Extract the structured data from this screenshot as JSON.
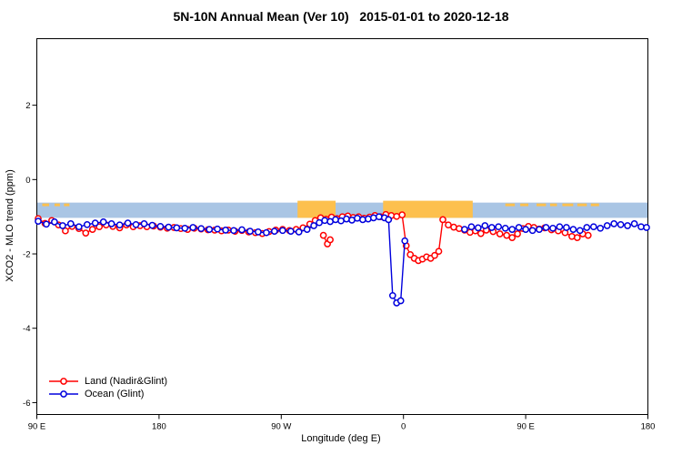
{
  "chart_data": {
    "type": "line",
    "title": "5N-10N Annual Mean (Ver 10)   2015-01-01 to 2020-12-18",
    "xlabel": "Longitude (deg E)",
    "ylabel": "XCO2 - MLO trend (ppm)",
    "x_range": [
      90,
      540
    ],
    "y_range": [
      -6.32,
      3.79
    ],
    "x_ticks": [
      {
        "t": 90,
        "label": "90 E"
      },
      {
        "t": 180,
        "label": "180"
      },
      {
        "t": 270,
        "label": "90 W"
      },
      {
        "t": 360,
        "label": "0"
      },
      {
        "t": 450,
        "label": "90 E"
      },
      {
        "t": 540,
        "label": "180"
      }
    ],
    "y_ticks": [
      {
        "v": 2,
        "label": "2"
      },
      {
        "v": 0,
        "label": "0"
      },
      {
        "v": -2,
        "label": "-2"
      },
      {
        "v": -4,
        "label": "-4"
      },
      {
        "v": -6,
        "label": "-6"
      }
    ],
    "grid": false,
    "legend_position": "bottom-left",
    "surface_strip": {
      "ocean_color": "#a9c5e4",
      "land_color": "#fdc04e",
      "v_top": -0.62,
      "v_bottom": -1.03,
      "land_v_top": -0.57,
      "dash_v": -0.68,
      "land_segments": [
        [
          282,
          310
        ],
        [
          345,
          411
        ]
      ],
      "land_dashes": [
        [
          94,
          99
        ],
        [
          103,
          107
        ],
        [
          110,
          114
        ],
        [
          289,
          294
        ],
        [
          435,
          442
        ],
        [
          446,
          452
        ],
        [
          458,
          465
        ],
        [
          468,
          473
        ],
        [
          477,
          485
        ],
        [
          488,
          495
        ],
        [
          498,
          504
        ]
      ]
    },
    "series": [
      {
        "name": "Land (Nadir&Glint)",
        "color": "#ff0000",
        "segments": [
          [
            [
              91,
              -1.05
            ],
            [
              96,
              -1.18
            ],
            [
              101,
              -1.1
            ],
            [
              106,
              -1.22
            ],
            [
              111,
              -1.38
            ],
            [
              116,
              -1.26
            ],
            [
              121,
              -1.32
            ],
            [
              126,
              -1.44
            ],
            [
              131,
              -1.34
            ],
            [
              136,
              -1.27
            ],
            [
              141,
              -1.22
            ],
            [
              146,
              -1.26
            ],
            [
              151,
              -1.3
            ],
            [
              156,
              -1.22
            ],
            [
              161,
              -1.27
            ],
            [
              166,
              -1.24
            ],
            [
              171,
              -1.27
            ],
            [
              176,
              -1.25
            ],
            [
              181,
              -1.28
            ],
            [
              186,
              -1.31
            ],
            [
              191,
              -1.29
            ],
            [
              196,
              -1.32
            ],
            [
              201,
              -1.34
            ],
            [
              206,
              -1.31
            ],
            [
              211,
              -1.33
            ],
            [
              216,
              -1.35
            ],
            [
              221,
              -1.36
            ],
            [
              226,
              -1.38
            ],
            [
              231,
              -1.36
            ],
            [
              236,
              -1.39
            ],
            [
              241,
              -1.37
            ],
            [
              246,
              -1.41
            ],
            [
              251,
              -1.43
            ],
            [
              256,
              -1.45
            ],
            [
              261,
              -1.4
            ],
            [
              266,
              -1.36
            ],
            [
              271,
              -1.34
            ],
            [
              276,
              -1.37
            ],
            [
              281,
              -1.34
            ],
            [
              286,
              -1.3
            ],
            [
              291,
              -1.2
            ],
            [
              295,
              -1.1
            ],
            [
              299,
              -1.03
            ],
            [
              303,
              -1.07
            ],
            [
              307,
              -1.01
            ],
            [
              311,
              -1.05
            ],
            [
              315,
              -1.0
            ],
            [
              319,
              -0.98
            ],
            [
              323,
              -1.02
            ],
            [
              327,
              -1.0
            ],
            [
              331,
              -1.04
            ],
            [
              335,
              -1.01
            ],
            [
              339,
              -0.97
            ],
            [
              343,
              -1.0
            ],
            [
              347,
              -0.94
            ],
            [
              351,
              -0.97
            ],
            [
              355,
              -0.99
            ],
            [
              359,
              -0.95
            ],
            [
              362,
              -1.78
            ],
            [
              365,
              -2.02
            ],
            [
              368,
              -2.12
            ],
            [
              371,
              -2.18
            ],
            [
              374,
              -2.14
            ],
            [
              377,
              -2.08
            ],
            [
              380,
              -2.12
            ],
            [
              383,
              -2.04
            ],
            [
              386,
              -1.93
            ],
            [
              389,
              -1.08
            ],
            [
              393,
              -1.22
            ],
            [
              397,
              -1.28
            ],
            [
              401,
              -1.32
            ],
            [
              405,
              -1.36
            ],
            [
              409,
              -1.42
            ],
            [
              413,
              -1.38
            ],
            [
              417,
              -1.45
            ],
            [
              421,
              -1.36
            ],
            [
              426,
              -1.4
            ],
            [
              431,
              -1.46
            ],
            [
              436,
              -1.5
            ],
            [
              440,
              -1.56
            ],
            [
              444,
              -1.46
            ],
            [
              448,
              -1.32
            ],
            [
              452,
              -1.26
            ],
            [
              456,
              -1.29
            ],
            [
              460,
              -1.33
            ],
            [
              464,
              -1.3
            ],
            [
              469,
              -1.35
            ],
            [
              474,
              -1.38
            ],
            [
              479,
              -1.43
            ],
            [
              484,
              -1.53
            ],
            [
              488,
              -1.56
            ],
            [
              492,
              -1.46
            ],
            [
              496,
              -1.5
            ]
          ],
          [
            [
              301,
              -1.5
            ],
            [
              304,
              -1.73
            ],
            [
              306,
              -1.62
            ]
          ]
        ]
      },
      {
        "name": "Ocean (Glint)",
        "color": "#0000dd",
        "segments": [
          [
            [
              91,
              -1.12
            ],
            [
              97,
              -1.2
            ],
            [
              103,
              -1.14
            ],
            [
              109,
              -1.24
            ],
            [
              115,
              -1.19
            ],
            [
              121,
              -1.27
            ],
            [
              127,
              -1.21
            ],
            [
              133,
              -1.17
            ],
            [
              139,
              -1.14
            ],
            [
              145,
              -1.19
            ],
            [
              151,
              -1.22
            ],
            [
              157,
              -1.17
            ],
            [
              163,
              -1.21
            ],
            [
              169,
              -1.19
            ],
            [
              175,
              -1.23
            ],
            [
              181,
              -1.26
            ],
            [
              187,
              -1.28
            ],
            [
              193,
              -1.3
            ],
            [
              199,
              -1.31
            ],
            [
              205,
              -1.29
            ],
            [
              211,
              -1.32
            ],
            [
              217,
              -1.34
            ],
            [
              223,
              -1.33
            ],
            [
              229,
              -1.36
            ],
            [
              235,
              -1.37
            ],
            [
              241,
              -1.35
            ],
            [
              247,
              -1.39
            ],
            [
              253,
              -1.41
            ],
            [
              259,
              -1.43
            ],
            [
              265,
              -1.39
            ],
            [
              271,
              -1.37
            ],
            [
              277,
              -1.39
            ],
            [
              283,
              -1.41
            ],
            [
              289,
              -1.34
            ],
            [
              294,
              -1.24
            ],
            [
              298,
              -1.16
            ],
            [
              302,
              -1.1
            ],
            [
              306,
              -1.13
            ],
            [
              310,
              -1.08
            ],
            [
              314,
              -1.11
            ],
            [
              318,
              -1.06
            ],
            [
              322,
              -1.09
            ],
            [
              326,
              -1.04
            ],
            [
              330,
              -1.08
            ],
            [
              334,
              -1.06
            ],
            [
              338,
              -1.03
            ],
            [
              342,
              -1.0
            ],
            [
              346,
              -1.03
            ],
            [
              349,
              -1.08
            ],
            [
              352,
              -3.12
            ],
            [
              355,
              -3.32
            ],
            [
              358,
              -3.26
            ],
            [
              361,
              -1.65
            ]
          ],
          [
            [
              405,
              -1.34
            ],
            [
              410,
              -1.27
            ],
            [
              415,
              -1.3
            ],
            [
              420,
              -1.24
            ],
            [
              425,
              -1.29
            ],
            [
              430,
              -1.27
            ],
            [
              435,
              -1.31
            ],
            [
              440,
              -1.34
            ],
            [
              445,
              -1.29
            ],
            [
              450,
              -1.34
            ],
            [
              455,
              -1.37
            ],
            [
              460,
              -1.34
            ],
            [
              465,
              -1.29
            ],
            [
              470,
              -1.31
            ],
            [
              475,
              -1.27
            ],
            [
              480,
              -1.29
            ],
            [
              485,
              -1.34
            ],
            [
              490,
              -1.37
            ],
            [
              495,
              -1.29
            ],
            [
              500,
              -1.27
            ],
            [
              505,
              -1.31
            ],
            [
              510,
              -1.24
            ],
            [
              515,
              -1.19
            ],
            [
              520,
              -1.21
            ],
            [
              525,
              -1.24
            ],
            [
              530,
              -1.19
            ],
            [
              535,
              -1.27
            ],
            [
              539,
              -1.29
            ]
          ]
        ]
      }
    ]
  }
}
